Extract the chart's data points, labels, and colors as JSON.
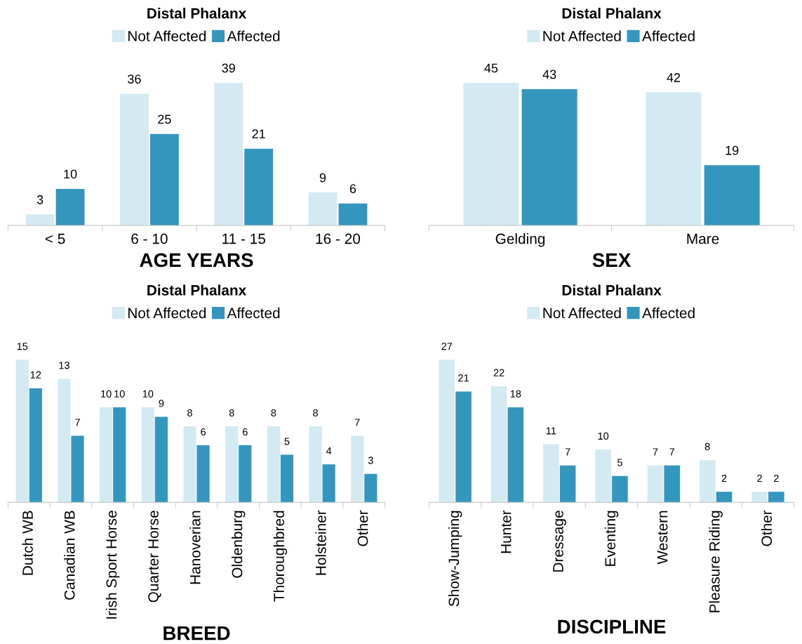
{
  "chart_data": [
    {
      "type": "bar",
      "title": "Distal Phalanx",
      "xlabel": "AGE YEARS",
      "categories": [
        "< 5",
        "6 - 10",
        "11 - 15",
        "16 - 20"
      ],
      "legend": "top",
      "data_labels": true,
      "tick_labels": "x",
      "series": [
        {
          "name": "Not Affected",
          "color": "#d4eaf2",
          "values": [
            3,
            36,
            39,
            9
          ]
        },
        {
          "name": "Affected",
          "color": "#3596bd",
          "values": [
            10,
            25,
            21,
            6
          ]
        }
      ]
    },
    {
      "type": "bar",
      "title": "Distal Phalanx",
      "xlabel": "SEX",
      "categories": [
        "Gelding",
        "Mare"
      ],
      "legend": "top",
      "data_labels": true,
      "tick_labels": "x",
      "series": [
        {
          "name": "Not Affected",
          "color": "#d4eaf2",
          "values": [
            45,
            42
          ]
        },
        {
          "name": "Affected",
          "color": "#3596bd",
          "values": [
            43,
            19
          ]
        }
      ]
    },
    {
      "type": "bar",
      "title": "Distal Phalanx",
      "xlabel": "BREED",
      "categories": [
        "Dutch WB",
        "Canadian WB",
        "Irish Sport Horse",
        "Quarter Horse",
        "Hanoverian",
        "Oldenburg",
        "Thoroughbred",
        "Holsteiner",
        "Other"
      ],
      "legend": "top",
      "data_labels": true,
      "tick_labels": "x",
      "series": [
        {
          "name": "Not Affected",
          "color": "#d4eaf2",
          "values": [
            15,
            13,
            10,
            10,
            8,
            8,
            8,
            8,
            7
          ]
        },
        {
          "name": "Affected",
          "color": "#3596bd",
          "values": [
            12,
            7,
            10,
            9,
            6,
            6,
            5,
            4,
            3
          ]
        }
      ]
    },
    {
      "type": "bar",
      "title": "Distal Phalanx",
      "xlabel": "DISCIPLINE",
      "categories": [
        "Show-Jumping",
        "Hunter",
        "Dressage",
        "Eventing",
        "Western",
        "Pleasure Riding",
        "Other"
      ],
      "legend": "top",
      "data_labels": true,
      "tick_labels": "x",
      "series": [
        {
          "name": "Not Affected",
          "color": "#d4eaf2",
          "values": [
            27,
            22,
            11,
            10,
            7,
            8,
            2
          ]
        },
        {
          "name": "Affected",
          "color": "#3596bd",
          "values": [
            21,
            18,
            7,
            5,
            7,
            2,
            2
          ]
        }
      ]
    }
  ]
}
